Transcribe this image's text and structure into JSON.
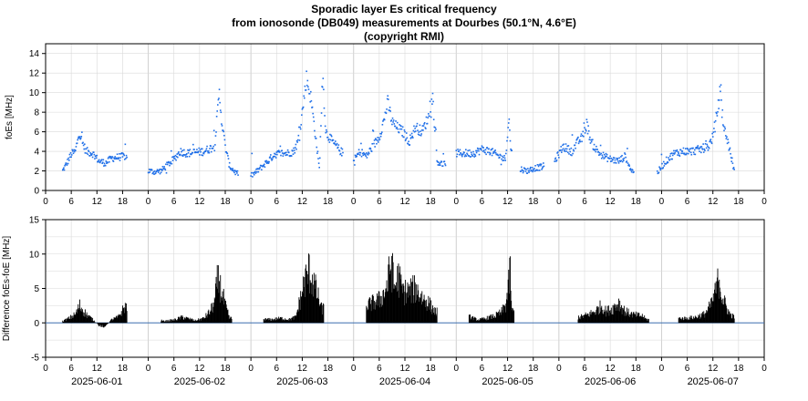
{
  "title": [
    "Sporadic layer Es critical frequency",
    "from ionosonde (DB049) measurements at Dourbes (50.1°N, 4.6°E)",
    "(copyright RMI)"
  ],
  "colors": {
    "points": "#1f6fe8",
    "bars": "#000000",
    "zero_line": "#3b6fb0",
    "grid": "#d9d9d9"
  },
  "chart_data": [
    {
      "type": "scatter",
      "ylabel": "foEs [MHz]",
      "ylim": [
        0,
        15
      ],
      "yticks": [
        "0",
        "2",
        "4",
        "6",
        "8",
        "10",
        "12",
        "14"
      ],
      "xlim_hours": [
        0,
        168
      ],
      "xtick_labels": [
        "0",
        "6",
        "12",
        "18",
        "0",
        "6",
        "12",
        "18",
        "0",
        "6",
        "12",
        "18",
        "0",
        "6",
        "12",
        "18",
        "0",
        "6",
        "12",
        "18",
        "0",
        "6",
        "12",
        "18",
        "0",
        "6",
        "12",
        "18",
        "0"
      ],
      "grid": true,
      "anchors": [
        [
          4.0,
          2.0
        ],
        [
          5.0,
          2.8
        ],
        [
          6.0,
          3.7
        ],
        [
          7.0,
          4.0
        ],
        [
          7.8,
          6.0
        ],
        [
          8.5,
          5.0
        ],
        [
          9.5,
          4.0
        ],
        [
          11.0,
          3.8
        ],
        [
          12.5,
          3.0
        ],
        [
          14.0,
          2.8
        ],
        [
          15.5,
          3.3
        ],
        [
          17.0,
          3.4
        ],
        [
          18.5,
          3.5
        ],
        [
          24.0,
          2.0
        ],
        [
          25.5,
          1.9
        ],
        [
          27.0,
          2.0
        ],
        [
          28.5,
          2.6
        ],
        [
          30.0,
          3.2
        ],
        [
          31.5,
          4.0
        ],
        [
          33.0,
          3.8
        ],
        [
          35.0,
          3.9
        ],
        [
          37.0,
          4.0
        ],
        [
          39.5,
          4.5
        ],
        [
          40.2,
          8.0
        ],
        [
          40.6,
          10.0
        ],
        [
          41.2,
          7.0
        ],
        [
          42.0,
          4.5
        ],
        [
          43.0,
          2.5
        ],
        [
          44.5,
          1.8
        ],
        [
          48.0,
          1.5
        ],
        [
          49.0,
          1.8
        ],
        [
          50.5,
          2.4
        ],
        [
          52.0,
          3.0
        ],
        [
          53.5,
          3.7
        ],
        [
          55.0,
          3.8
        ],
        [
          56.5,
          3.8
        ],
        [
          58.0,
          4.0
        ],
        [
          59.0,
          5.0
        ],
        [
          60.0,
          8.0
        ],
        [
          61.0,
          11.5
        ],
        [
          62.0,
          9.5
        ],
        [
          63.0,
          6.0
        ],
        [
          64.0,
          2.2
        ],
        [
          64.8,
          11.8
        ],
        [
          65.5,
          6.0
        ],
        [
          67.0,
          5.0
        ],
        [
          69.0,
          4.0
        ],
        [
          72.0,
          3.0
        ],
        [
          73.5,
          4.0
        ],
        [
          75.0,
          3.5
        ],
        [
          76.5,
          4.5
        ],
        [
          78.0,
          5.5
        ],
        [
          79.0,
          7.0
        ],
        [
          80.0,
          9.0
        ],
        [
          81.0,
          7.0
        ],
        [
          82.0,
          6.5
        ],
        [
          83.5,
          6.0
        ],
        [
          85.0,
          5.0
        ],
        [
          86.5,
          6.5
        ],
        [
          88.0,
          6.0
        ],
        [
          89.5,
          7.5
        ],
        [
          90.5,
          9.5
        ],
        [
          91.5,
          3.0
        ],
        [
          93.0,
          2.6
        ],
        [
          96.0,
          3.8
        ],
        [
          98.0,
          3.8
        ],
        [
          100.0,
          3.8
        ],
        [
          102.0,
          4.2
        ],
        [
          104.0,
          4.0
        ],
        [
          106.0,
          3.5
        ],
        [
          107.5,
          3.2
        ],
        [
          108.3,
          7.5
        ],
        [
          108.8,
          4.0
        ],
        [
          111.0,
          2.2
        ],
        [
          112.5,
          2.0
        ],
        [
          114.5,
          2.3
        ],
        [
          116.0,
          2.4
        ],
        [
          119.0,
          3.0
        ],
        [
          121.0,
          4.5
        ],
        [
          123.0,
          4.0
        ],
        [
          124.5,
          5.0
        ],
        [
          125.5,
          5.4
        ],
        [
          126.5,
          6.8
        ],
        [
          127.5,
          5.0
        ],
        [
          129.0,
          4.0
        ],
        [
          130.5,
          3.5
        ],
        [
          132.0,
          3.2
        ],
        [
          134.0,
          3.0
        ],
        [
          135.5,
          3.5
        ],
        [
          137.0,
          2.0
        ],
        [
          143.0,
          1.8
        ],
        [
          145.0,
          3.0
        ],
        [
          147.0,
          3.8
        ],
        [
          149.0,
          4.0
        ],
        [
          151.0,
          4.0
        ],
        [
          153.0,
          4.2
        ],
        [
          155.0,
          4.5
        ],
        [
          156.0,
          5.5
        ],
        [
          157.2,
          8.5
        ],
        [
          157.8,
          10.5
        ],
        [
          158.5,
          6.5
        ],
        [
          159.5,
          5.0
        ],
        [
          160.5,
          3.0
        ],
        [
          161.0,
          2.0
        ]
      ],
      "gaps_hours": [
        [
          19.0,
          24.0
        ],
        [
          45.0,
          48.0
        ],
        [
          69.5,
          72.0
        ],
        [
          93.5,
          96.0
        ],
        [
          109.0,
          111.0
        ],
        [
          116.5,
          119.0
        ],
        [
          137.5,
          143.0
        ],
        [
          161.5,
          168.0
        ]
      ]
    },
    {
      "type": "bar",
      "ylabel": "Difference foEs-foE [MHz]",
      "ylim": [
        -5,
        15
      ],
      "yticks": [
        "-5",
        "0",
        "5",
        "10",
        "15"
      ],
      "xlim_hours": [
        0,
        168
      ],
      "xtick_labels": [
        "0",
        "6",
        "12",
        "18",
        "0",
        "6",
        "12",
        "18",
        "0",
        "6",
        "12",
        "18",
        "0",
        "6",
        "12",
        "18",
        "0",
        "6",
        "12",
        "18",
        "0",
        "6",
        "12",
        "18",
        "0",
        "6",
        "12",
        "18",
        "0"
      ],
      "date_labels": [
        "2025-06-01",
        "2025-06-02",
        "2025-06-03",
        "2025-06-04",
        "2025-06-05",
        "2025-06-06",
        "2025-06-07"
      ],
      "grid": true,
      "anchors": [
        [
          4.0,
          0.3
        ],
        [
          5.5,
          0.8
        ],
        [
          7.0,
          1.5
        ],
        [
          8.0,
          3.0
        ],
        [
          9.5,
          1.5
        ],
        [
          11.0,
          0.6
        ],
        [
          12.5,
          -0.5
        ],
        [
          14.0,
          -0.6
        ],
        [
          15.5,
          0.6
        ],
        [
          17.0,
          1.0
        ],
        [
          18.5,
          2.8
        ],
        [
          27.5,
          0.3
        ],
        [
          30.0,
          0.5
        ],
        [
          32.0,
          1.0
        ],
        [
          35.0,
          0.4
        ],
        [
          37.0,
          0.8
        ],
        [
          38.5,
          2.0
        ],
        [
          39.5,
          3.5
        ],
        [
          40.2,
          7.5
        ],
        [
          41.0,
          6.0
        ],
        [
          42.0,
          3.0
        ],
        [
          43.0,
          0.8
        ],
        [
          51.5,
          0.6
        ],
        [
          53.0,
          0.6
        ],
        [
          55.0,
          0.8
        ],
        [
          57.0,
          0.6
        ],
        [
          58.5,
          1.0
        ],
        [
          59.5,
          4.0
        ],
        [
          60.5,
          7.0
        ],
        [
          61.5,
          9.0
        ],
        [
          62.5,
          7.5
        ],
        [
          63.5,
          5.0
        ],
        [
          64.5,
          2.5
        ],
        [
          75.0,
          3.0
        ],
        [
          76.5,
          3.5
        ],
        [
          78.0,
          4.0
        ],
        [
          79.0,
          5.0
        ],
        [
          80.0,
          7.0
        ],
        [
          80.8,
          11.0
        ],
        [
          81.5,
          6.0
        ],
        [
          82.5,
          8.0
        ],
        [
          83.5,
          5.5
        ],
        [
          85.0,
          5.5
        ],
        [
          86.5,
          6.0
        ],
        [
          88.0,
          4.5
        ],
        [
          89.5,
          3.5
        ],
        [
          91.0,
          2.0
        ],
        [
          99.5,
          1.0
        ],
        [
          101.0,
          0.5
        ],
        [
          103.0,
          0.8
        ],
        [
          105.0,
          1.2
        ],
        [
          106.5,
          1.8
        ],
        [
          107.5,
          3.0
        ],
        [
          108.2,
          6.0
        ],
        [
          108.6,
          9.5
        ],
        [
          109.0,
          2.0
        ],
        [
          125.0,
          1.0
        ],
        [
          127.0,
          1.5
        ],
        [
          128.5,
          2.0
        ],
        [
          130.0,
          3.0
        ],
        [
          131.0,
          2.0
        ],
        [
          132.5,
          2.5
        ],
        [
          134.0,
          3.5
        ],
        [
          135.5,
          2.0
        ],
        [
          137.0,
          1.5
        ],
        [
          139.5,
          1.2
        ],
        [
          140.5,
          0.6
        ],
        [
          148.5,
          0.8
        ],
        [
          150.0,
          0.8
        ],
        [
          152.0,
          1.0
        ],
        [
          154.0,
          1.5
        ],
        [
          155.5,
          3.0
        ],
        [
          156.5,
          5.0
        ],
        [
          157.5,
          8.0
        ],
        [
          158.2,
          4.5
        ],
        [
          159.0,
          3.0
        ],
        [
          160.0,
          1.5
        ],
        [
          161.0,
          1.0
        ]
      ],
      "gaps_hours": [
        [
          19.0,
          27.0
        ],
        [
          43.5,
          51.0
        ],
        [
          65.0,
          75.0
        ],
        [
          91.5,
          99.0
        ],
        [
          109.5,
          124.5
        ],
        [
          141.0,
          148.0
        ],
        [
          161.5,
          168.0
        ]
      ]
    }
  ]
}
